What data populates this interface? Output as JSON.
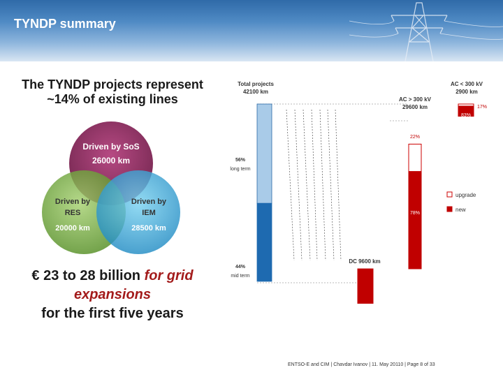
{
  "header": {
    "title": "TYNDP summary"
  },
  "left": {
    "headline_line1": "The TYNDP projects represent",
    "headline_line2": "~14% of existing lines",
    "venn": {
      "sos": {
        "line1": "Driven by SoS",
        "line2": "26000 km",
        "color": "#8a1f55"
      },
      "res": {
        "line1": "Driven by",
        "line2": "RES",
        "line3": "20000 km",
        "color": "#7fb23a"
      },
      "iem": {
        "line1": "Driven by",
        "line2": "IEM",
        "line3": "28500 km",
        "color": "#2aa7d8"
      }
    },
    "investment": {
      "line1_prefix": "€ 23 to 28 billion ",
      "line1_em": "for grid",
      "line2_em": "expansions",
      "line3": "for the first five years"
    }
  },
  "chart_data": {
    "type": "bar",
    "title": "",
    "unit": "km",
    "categories": [
      "Total projects",
      "AC > 300 kV",
      "AC < 300 kV",
      "DC"
    ],
    "category_labels": [
      "Total projects",
      "AC > 300 kV",
      "AC < 300 kV",
      "DC 9600 km"
    ],
    "value_labels": [
      "42100 km",
      "29600 km",
      "2900 km",
      ""
    ],
    "values": [
      42100,
      29600,
      2900,
      9600
    ],
    "total_breakdown": [
      {
        "name": "long term",
        "percent": 56,
        "label": "56%",
        "color": "#a9cbe8"
      },
      {
        "name": "mid term",
        "percent": 44,
        "label": "44%",
        "color": "#1e6ab0"
      }
    ],
    "ac_breakdown": {
      "ac_above_300": [
        {
          "name": "upgrade",
          "percent": 22,
          "label": "22%"
        },
        {
          "name": "new",
          "percent": 78,
          "label": "78%"
        }
      ],
      "ac_below_300": [
        {
          "name": "upgrade",
          "percent": 17,
          "label": "17%"
        },
        {
          "name": "new",
          "percent": 83,
          "label": "83%"
        }
      ]
    },
    "legend": [
      {
        "name": "upgrade",
        "color": "#ffffff",
        "border": "#cc0000"
      },
      {
        "name": "new",
        "color": "#c00000"
      }
    ],
    "colors": {
      "new": "#c00000",
      "upgrade": "#ffffff",
      "upgrade_border": "#cc0000"
    }
  },
  "footer": {
    "text": "ENTSO-E and CIM | Chavdar Ivanov | 11. May 20110 | Page 8 of 33"
  }
}
